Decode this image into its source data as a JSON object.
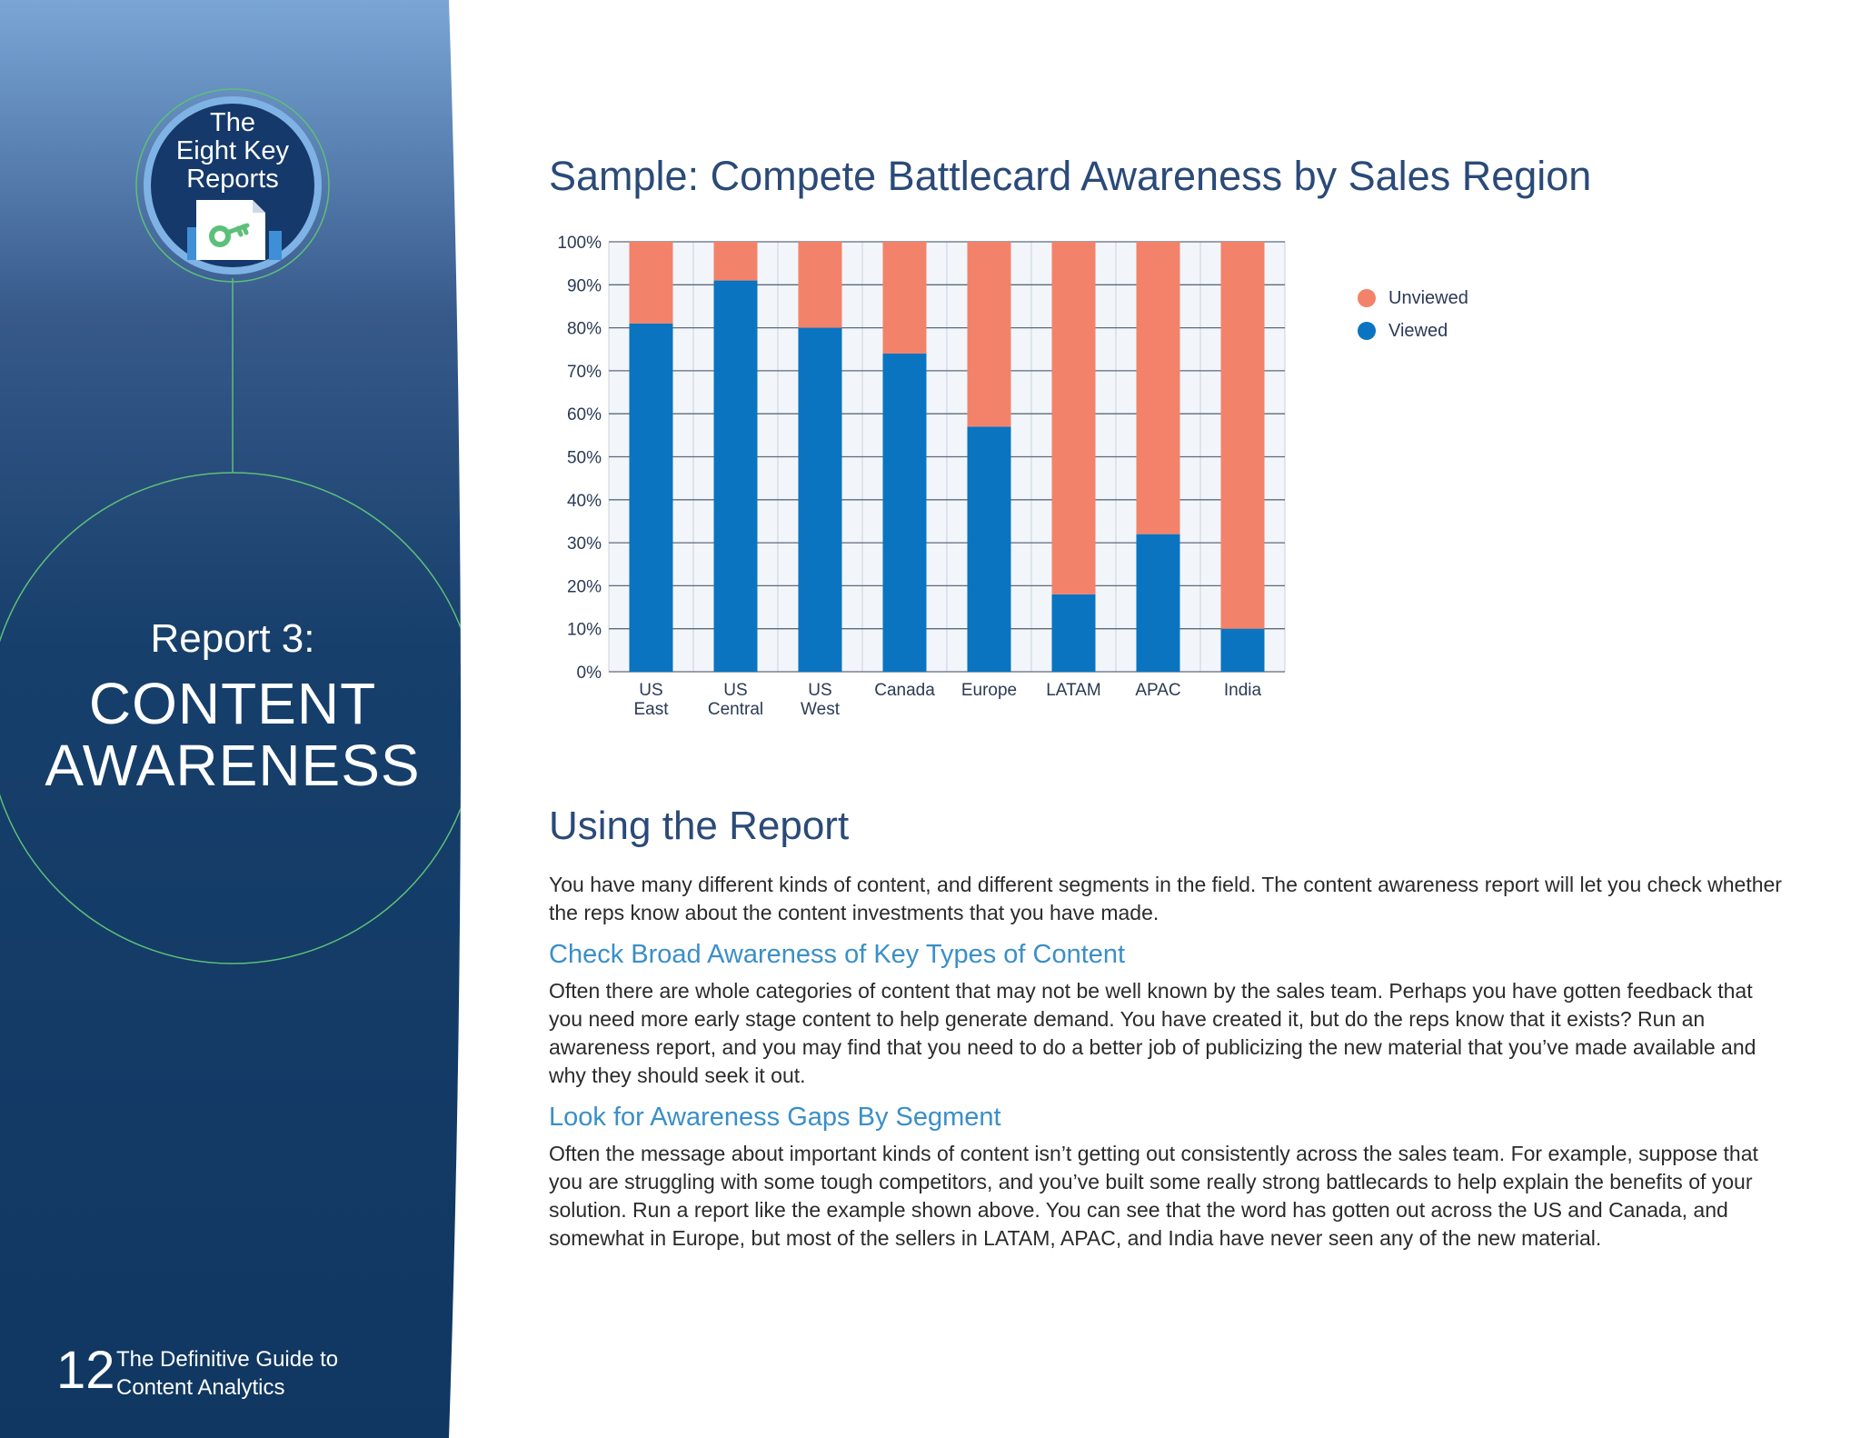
{
  "sidebar": {
    "badge_lines": [
      "The",
      "Eight Key",
      "Reports"
    ],
    "report_number": "Report 3:",
    "report_title_lines": [
      "CONTENT",
      "AWARENESS"
    ],
    "page_number": "12",
    "guide_title_lines": [
      "The Definitive Guide to",
      "Content Analytics"
    ]
  },
  "chart_title": "Sample: Compete Battlecard Awareness by Sales Region",
  "chart_data": {
    "type": "bar",
    "stacked": true,
    "title": "Sample: Compete Battlecard Awareness by Sales Region",
    "categories": [
      [
        "US",
        "East"
      ],
      [
        "US",
        "Central"
      ],
      [
        "US",
        "West"
      ],
      [
        "Canada"
      ],
      [
        "Europe"
      ],
      [
        "LATAM"
      ],
      [
        "APAC"
      ],
      [
        "India"
      ]
    ],
    "series": [
      {
        "name": "Viewed",
        "color": "#0a74c0",
        "values": [
          81,
          91,
          80,
          74,
          57,
          18,
          32,
          10
        ]
      },
      {
        "name": "Unviewed",
        "color": "#f3826a",
        "values": [
          19,
          9,
          20,
          26,
          43,
          82,
          68,
          90
        ]
      }
    ],
    "ylim": [
      0,
      100
    ],
    "yticks": [
      "0%",
      "10%",
      "20%",
      "30%",
      "40%",
      "50%",
      "60%",
      "70%",
      "80%",
      "90%",
      "100%"
    ],
    "grid": true,
    "legend": {
      "position": "right",
      "entries": [
        "Unviewed",
        "Viewed"
      ]
    }
  },
  "section_title": "Using the Report",
  "intro_paragraph": "You have many different kinds of content, and different segments in the field. The content awareness report will let you check whether the reps know about the content investments that you have made.",
  "subsections": [
    {
      "heading": "Check Broad Awareness of Key Types of Content",
      "text": "Often there are whole categories of content that may not be well known by the sales team. Perhaps you have gotten feedback that you need more early stage content to help generate demand. You have created it, but do the reps know that it exists? Run an awareness report, and you may find that you need to do a better job of publicizing the new material that you’ve made available and why they should seek it out."
    },
    {
      "heading": "Look for Awareness Gaps By Segment",
      "text": "Often the message about important kinds of content isn’t getting out consistently across the sales team. For example, suppose that you are struggling with some tough competitors, and you’ve built some really strong battlecards to help explain the benefits of your solution. Run a report like the example shown above. You can see that the word has gotten out across the US and Canada, and somewhat in Europe, but most of the sellers in LATAM, APAC, and India have never seen any of the new material."
    }
  ],
  "colors": {
    "sidebar_top": "#7aa6d6",
    "sidebar_bottom": "#0f3761",
    "accent_green": "#5cc07a",
    "viewed": "#0a74c0",
    "unviewed": "#f3826a"
  }
}
